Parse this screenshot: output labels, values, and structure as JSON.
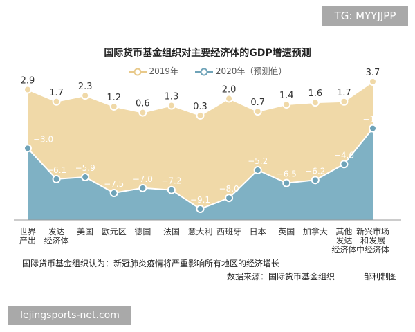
{
  "watermark_top": "TG: MYYJJPP",
  "watermark_bottom": "lejingsports-net.com",
  "note": "国际货币基金组织认为：新冠肺炎疫情将严重影响所有地区的经济增长",
  "source": "数据来源：国际货币基金组织",
  "author": "邹利制图",
  "colors": {
    "series2019": "#f0d9a8",
    "series2019_line": "#ffffff",
    "series2020": "#7fb1c4",
    "marker": "#6fa3b8"
  },
  "chart_data": {
    "type": "area",
    "title": "国际货币基金组织对主要经济体的GDP增速预测",
    "categories": [
      [
        "世界",
        "产出"
      ],
      [
        "发达",
        "经济体"
      ],
      [
        "美国"
      ],
      [
        "欧元区"
      ],
      [
        "德国"
      ],
      [
        "法国"
      ],
      [
        "意大利"
      ],
      [
        "西班牙"
      ],
      [
        "日本"
      ],
      [
        "英国"
      ],
      [
        "加拿大"
      ],
      [
        "其他",
        "发达",
        "经济体"
      ],
      [
        "新兴市场",
        "和发展",
        "中经济体"
      ]
    ],
    "series": [
      {
        "name": "2019年",
        "values": [
          2.9,
          1.7,
          2.3,
          1.2,
          0.6,
          1.3,
          0.3,
          2.0,
          0.7,
          1.4,
          1.6,
          1.7,
          3.7
        ]
      },
      {
        "name": "2020年（预测值）",
        "values": [
          -3.0,
          -6.1,
          -5.9,
          -7.5,
          -7.0,
          -7.2,
          -9.1,
          -8.0,
          -5.2,
          -6.5,
          -6.2,
          -4.6,
          -1.0
        ]
      }
    ],
    "legend": "top-center",
    "grid": false
  }
}
